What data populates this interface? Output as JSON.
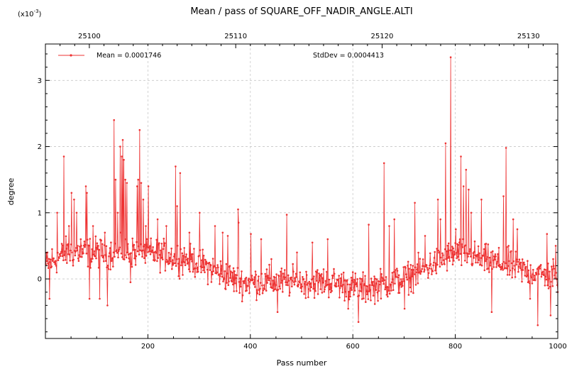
{
  "chart_data": {
    "type": "line",
    "title": "Mean / pass of SQUARE_OFF_NADIR_ANGLE.ALTI",
    "xlabel": "Pass number",
    "ylabel": "degree",
    "y_multiplier_label": "(x10",
    "y_multiplier_exp": "-3",
    "y_multiplier_close": ")",
    "xlim": [
      0,
      1000
    ],
    "ylim": [
      -0.9,
      3.55
    ],
    "x_ticks": [
      200,
      400,
      600,
      800,
      1000
    ],
    "y_ticks": [
      0,
      1,
      2,
      3
    ],
    "top_axis": {
      "xlim": [
        25097.0,
        25132.0
      ],
      "ticks": [
        25100,
        25110,
        25120,
        25130
      ]
    },
    "grid": true,
    "legend_placement": "top-left",
    "series": [
      {
        "name": "Mean = 0.0001746",
        "color": "#ee3333",
        "values_scale": "x10^-3"
      }
    ],
    "annotations": {
      "stddev": "StdDev = 0.0004413"
    },
    "samples": {
      "count": 1000,
      "baseline_breakpoints": [
        [
          0,
          0.2
        ],
        [
          40,
          0.4
        ],
        [
          130,
          0.4
        ],
        [
          190,
          0.4
        ],
        [
          280,
          0.3
        ],
        [
          380,
          -0.05
        ],
        [
          560,
          -0.05
        ],
        [
          620,
          -0.15
        ],
        [
          700,
          0.0
        ],
        [
          800,
          0.4
        ],
        [
          900,
          0.2
        ],
        [
          1000,
          0.0
        ]
      ],
      "noise_amplitude": 0.21,
      "spikes": [
        [
          3,
          0.4
        ],
        [
          7,
          -0.3
        ],
        [
          12,
          0.45
        ],
        [
          22,
          1.0
        ],
        [
          35,
          1.85
        ],
        [
          45,
          0.8
        ],
        [
          50,
          1.3
        ],
        [
          55,
          1.2
        ],
        [
          60,
          1.0
        ],
        [
          68,
          0.6
        ],
        [
          78,
          1.4
        ],
        [
          80,
          1.3
        ],
        [
          85,
          -0.3
        ],
        [
          92,
          0.8
        ],
        [
          102,
          0.5
        ],
        [
          105,
          -0.3
        ],
        [
          115,
          0.7
        ],
        [
          120,
          -0.4
        ],
        [
          133,
          2.4
        ],
        [
          136,
          1.5
        ],
        [
          140,
          1.0
        ],
        [
          145,
          2.0
        ],
        [
          148,
          1.85
        ],
        [
          150,
          2.1
        ],
        [
          152,
          1.8
        ],
        [
          155,
          1.5
        ],
        [
          158,
          1.45
        ],
        [
          165,
          -0.05
        ],
        [
          170,
          0.5
        ],
        [
          178,
          1.4
        ],
        [
          180,
          1.5
        ],
        [
          183,
          2.25
        ],
        [
          186,
          1.45
        ],
        [
          190,
          1.2
        ],
        [
          195,
          0.8
        ],
        [
          200,
          1.4
        ],
        [
          218,
          0.9
        ],
        [
          235,
          0.8
        ],
        [
          253,
          1.7
        ],
        [
          256,
          1.1
        ],
        [
          262,
          1.6
        ],
        [
          280,
          0.7
        ],
        [
          300,
          1.0
        ],
        [
          330,
          0.8
        ],
        [
          345,
          0.7
        ],
        [
          355,
          0.65
        ],
        [
          375,
          1.05
        ],
        [
          376,
          0.85
        ],
        [
          400,
          0.68
        ],
        [
          420,
          0.6
        ],
        [
          440,
          0.3
        ],
        [
          452,
          -0.5
        ],
        [
          470,
          0.97
        ],
        [
          490,
          0.4
        ],
        [
          520,
          0.55
        ],
        [
          550,
          0.6
        ],
        [
          590,
          -0.45
        ],
        [
          610,
          -0.65
        ],
        [
          630,
          0.82
        ],
        [
          660,
          1.75
        ],
        [
          670,
          0.8
        ],
        [
          680,
          0.9
        ],
        [
          700,
          -0.45
        ],
        [
          720,
          1.15
        ],
        [
          740,
          0.65
        ],
        [
          765,
          1.2
        ],
        [
          770,
          0.9
        ],
        [
          780,
          2.05
        ],
        [
          790,
          3.35
        ],
        [
          800,
          0.75
        ],
        [
          810,
          1.85
        ],
        [
          815,
          1.4
        ],
        [
          820,
          1.65
        ],
        [
          825,
          1.35
        ],
        [
          830,
          1.0
        ],
        [
          850,
          1.2
        ],
        [
          870,
          -0.5
        ],
        [
          893,
          1.25
        ],
        [
          898,
          1.98
        ],
        [
          903,
          0.5
        ],
        [
          912,
          0.9
        ],
        [
          920,
          0.75
        ],
        [
          945,
          -0.3
        ],
        [
          960,
          -0.7
        ],
        [
          978,
          0.68
        ],
        [
          985,
          -0.55
        ],
        [
          990,
          0.3
        ],
        [
          995,
          0.5
        ]
      ]
    }
  }
}
